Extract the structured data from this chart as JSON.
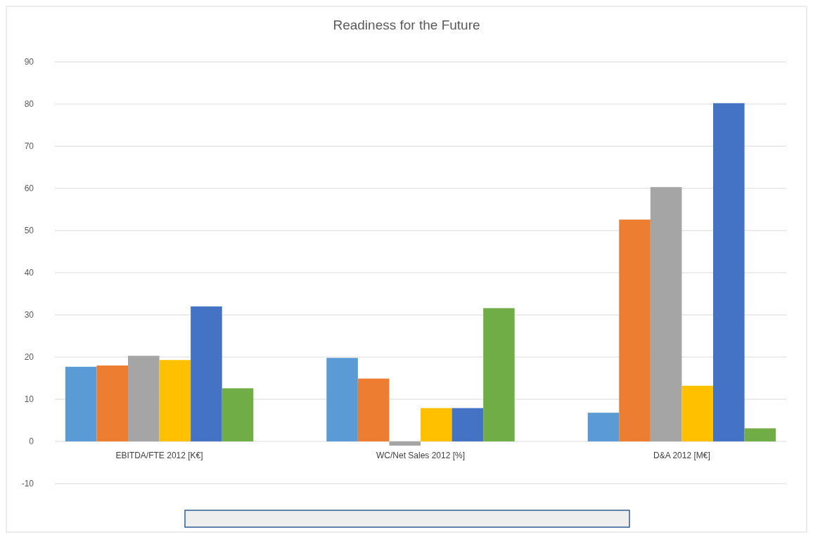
{
  "chart_data": {
    "type": "bar",
    "title": "Readiness for the Future",
    "categories": [
      "EBITDA/FTE 2012 [K€]",
      "WC/Net Sales 2012 [%]",
      "D&A 2012 [M€]"
    ],
    "series": [
      {
        "color": "#5b9bd5",
        "values": [
          17.7,
          19.8,
          6.8
        ]
      },
      {
        "color": "#ed7d31",
        "values": [
          18,
          14.9,
          52.6
        ]
      },
      {
        "color": "#a5a5a5",
        "values": [
          20.3,
          -1,
          60.3
        ]
      },
      {
        "color": "#ffc000",
        "values": [
          19.3,
          7.9,
          13.2
        ]
      },
      {
        "color": "#4472c4",
        "values": [
          32,
          7.9,
          80.2
        ]
      },
      {
        "color": "#70ad47",
        "values": [
          12.6,
          31.6,
          3.1
        ]
      }
    ],
    "ylim": [
      -10,
      90
    ],
    "yticks": [
      -10,
      0,
      10,
      20,
      30,
      40,
      50,
      60,
      70,
      80,
      90
    ],
    "grid": "y"
  }
}
